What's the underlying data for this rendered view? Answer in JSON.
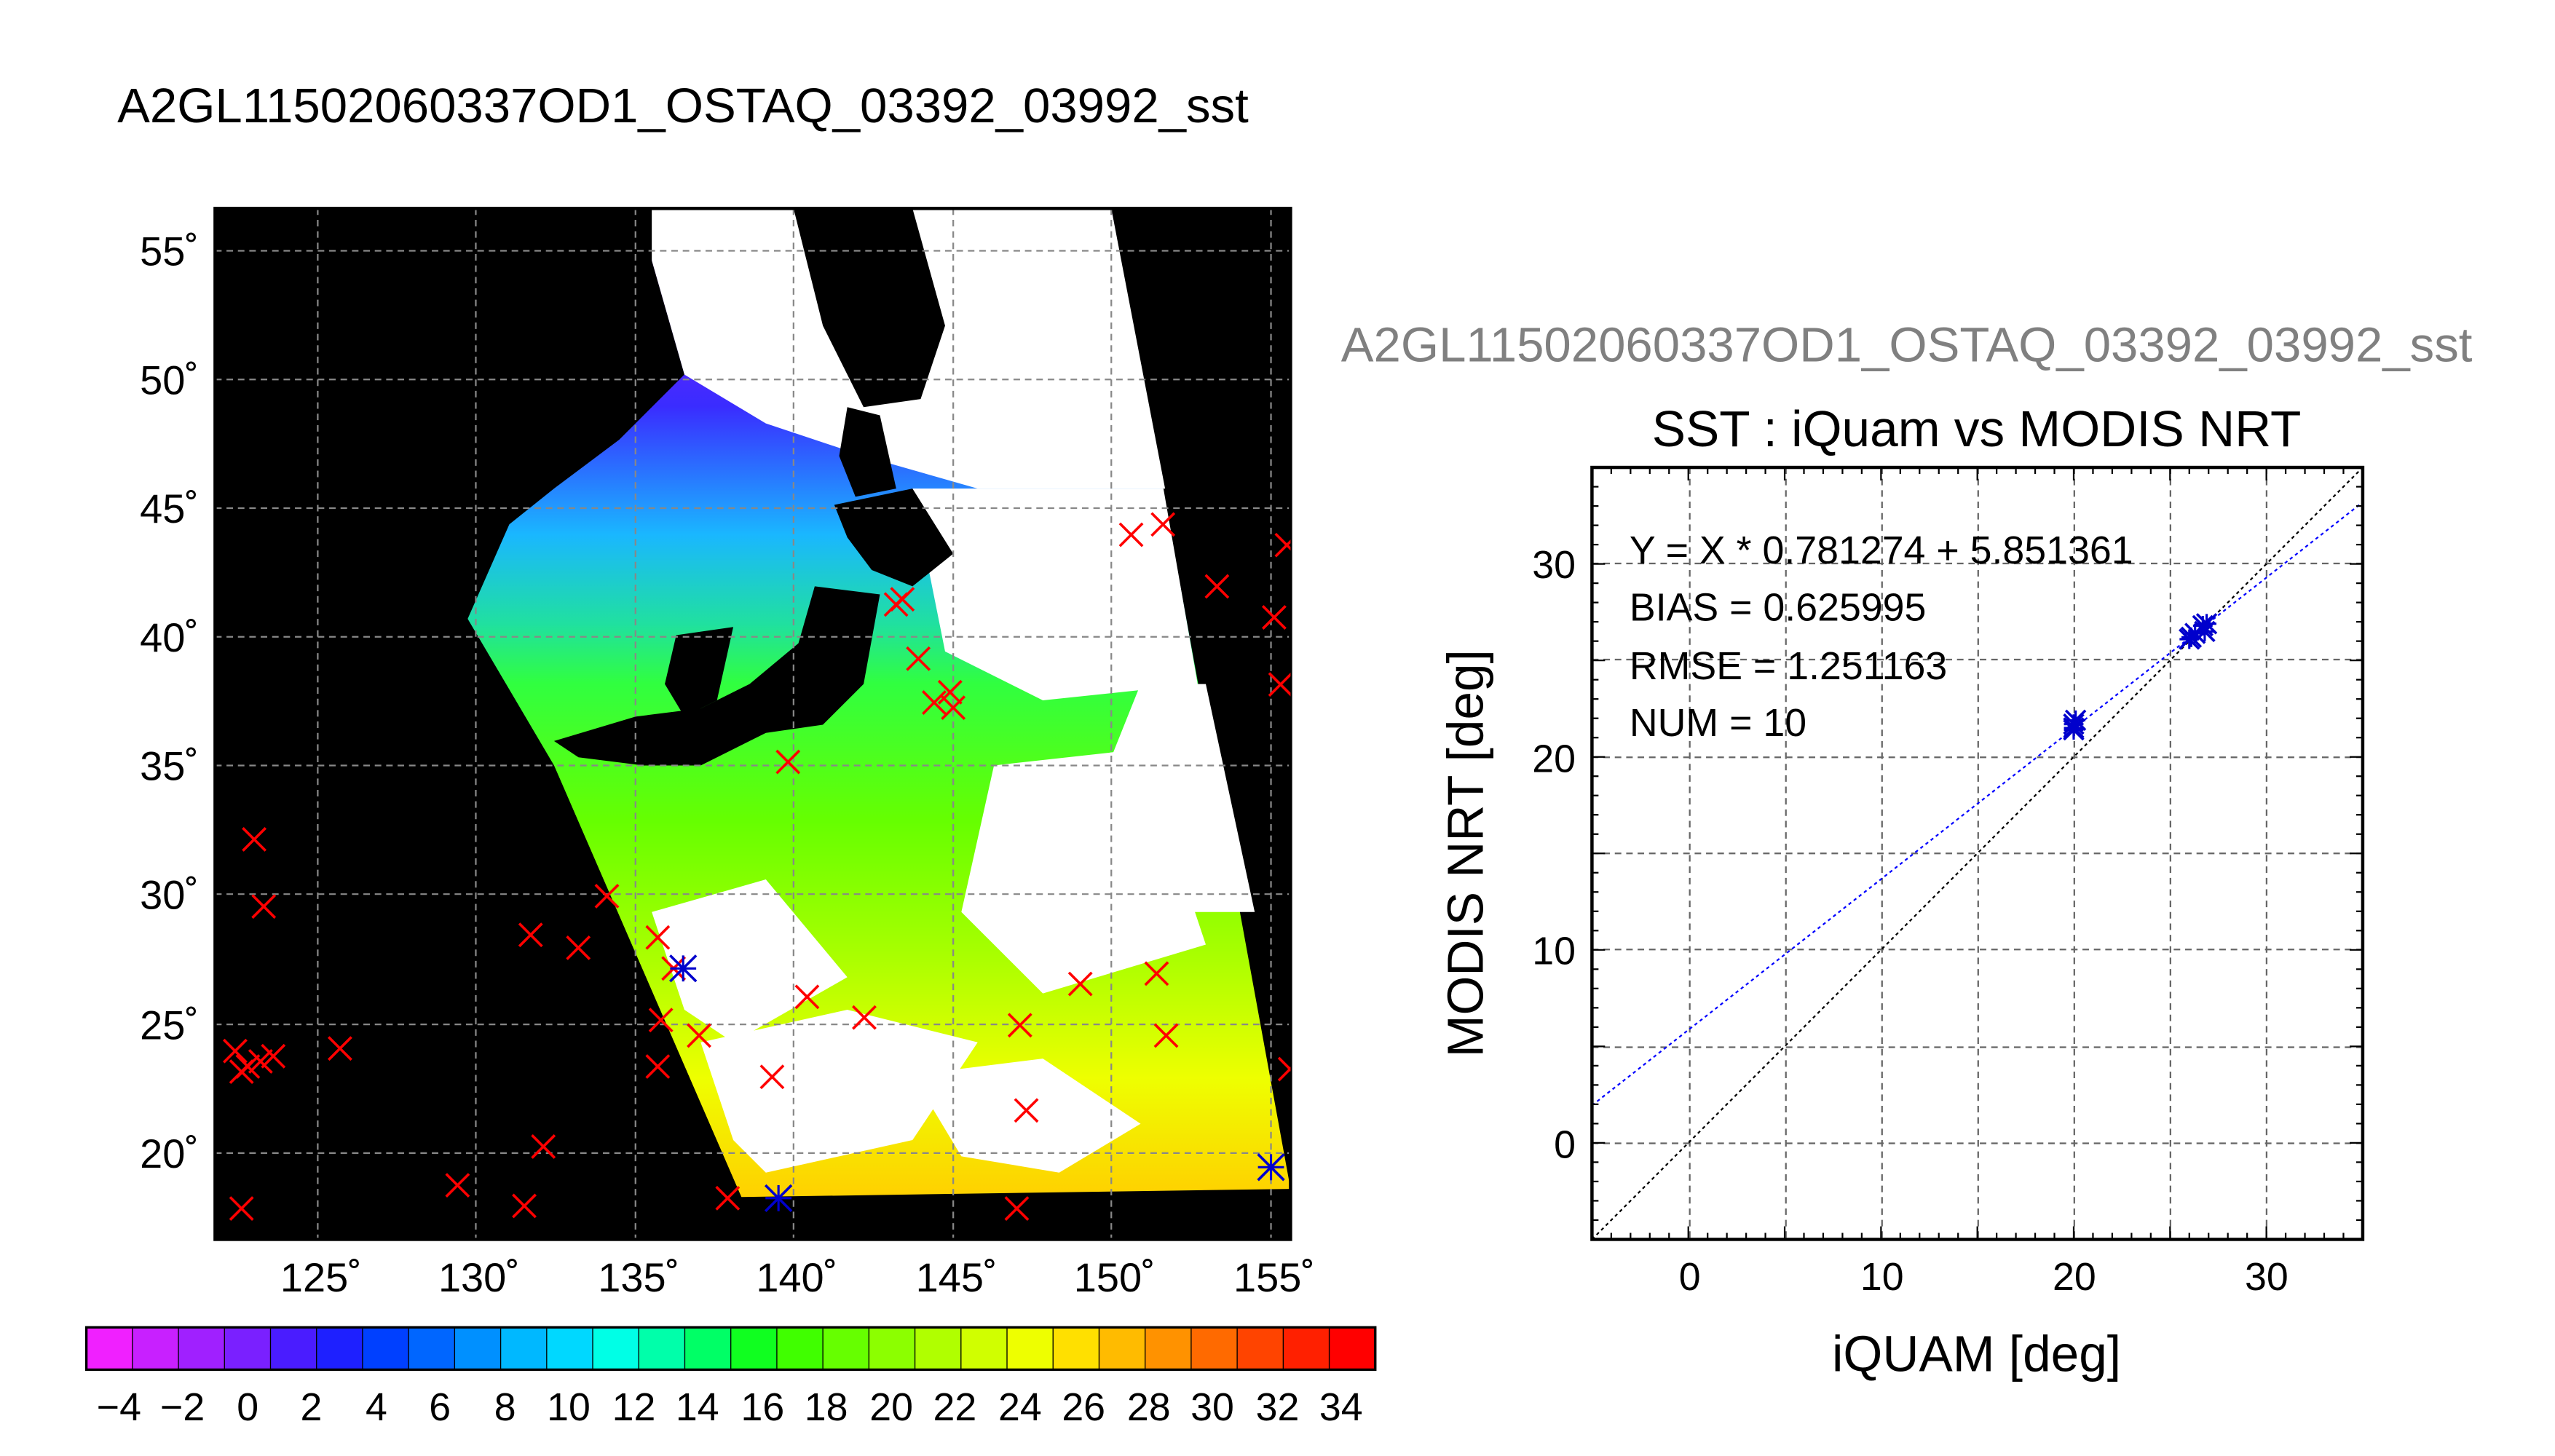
{
  "map": {
    "title": "A2GL11502060337OD1_OSTAQ_03392_03992_sst",
    "lon_ticks": [
      "125˚",
      "130˚",
      "135˚",
      "140˚",
      "145˚",
      "150˚",
      "155˚"
    ],
    "lat_ticks": [
      "20˚",
      "25˚",
      "30˚",
      "35˚",
      "40˚",
      "45˚",
      "50˚",
      "55˚"
    ],
    "colorbar_labels": [
      "−4",
      "−2",
      "0",
      "2",
      "4",
      "6",
      "8",
      "10",
      "12",
      "14",
      "16",
      "18",
      "20",
      "22",
      "24",
      "26",
      "28",
      "30",
      "32",
      "34"
    ]
  },
  "scatter_title_gray": "A2GL11502060337OD1_OSTAQ_03392_03992_sst",
  "colors": {
    "match_marker": "#ff0000",
    "used_marker": "#0000cc",
    "fit_line": "#0000ff",
    "identity_line": "#000000",
    "land": "#000000",
    "cloud": "#ffffff"
  },
  "chart_data": [
    {
      "type": "scatter",
      "title": "",
      "xlabel": "",
      "ylabel": "",
      "xlim": [
        122,
        156
      ],
      "ylim": [
        17,
        57
      ],
      "series": [
        {
          "x": [
            122.4,
            122.8,
            123.2,
            123.6,
            122.6,
            125.7,
            122.6,
            123.0,
            123.3,
            129.4,
            131.5,
            132.1,
            131.7,
            133.2,
            134.1,
            135.7,
            135.8,
            135.7,
            137.0,
            137.9,
            139.3,
            140.4,
            142.2,
            143.4,
            143.9,
            144.4,
            144.9,
            145.0,
            143.2,
            147.1,
            147.3,
            149.0,
            151.4,
            151.7,
            150.6,
            151.6,
            153.3,
            155.1,
            155.3,
            155.5,
            155.6,
            147.0,
            139.8,
            136.2
          ],
          "y": [
            24.0,
            23.4,
            23.6,
            23.8,
            23.2,
            24.1,
            17.9,
            32.2,
            29.6,
            18.8,
            18.0,
            20.3,
            28.5,
            28.0,
            30.0,
            28.4,
            25.2,
            23.4,
            24.6,
            18.3,
            23.0,
            26.1,
            25.3,
            41.5,
            39.2,
            37.5,
            37.9,
            37.3,
            41.3,
            25.0,
            21.7,
            26.6,
            27.0,
            24.6,
            44.0,
            44.4,
            42.0,
            40.8,
            38.2,
            43.6,
            23.3,
            17.9,
            35.2,
            27.2
          ]
        },
        {
          "name": "",
          "x": [
            136.5,
            139.5,
            155.0
          ],
          "y": [
            27.2,
            18.3,
            19.5
          ]
        }
      ]
    },
    {
      "type": "scatter",
      "title": "SST : iQuam vs MODIS NRT",
      "xlabel": "iQUAM [deg]",
      "ylabel": "MODIS NRT [deg]",
      "xlim": [
        -5,
        35
      ],
      "ylim": [
        -5,
        35
      ],
      "xticks": [
        0,
        10,
        20,
        30
      ],
      "yticks": [
        0,
        10,
        20,
        30
      ],
      "grid": true,
      "annotations": [
        "Y = X * 0.781274 + 5.851361",
        "BIAS = 0.625995",
        "RMSE = 1.251163",
        "NUM = 10"
      ],
      "fit": {
        "slope": 0.781274,
        "intercept": 5.851361
      },
      "series": [
        {
          "x": [
            20.0,
            20.0,
            20.1,
            20.0,
            26.0,
            26.1,
            26.3,
            26.7,
            26.9,
            26.8
          ],
          "y": [
            21.4,
            21.7,
            21.9,
            21.5,
            26.1,
            26.2,
            26.4,
            26.8,
            26.9,
            26.5
          ]
        }
      ]
    }
  ]
}
